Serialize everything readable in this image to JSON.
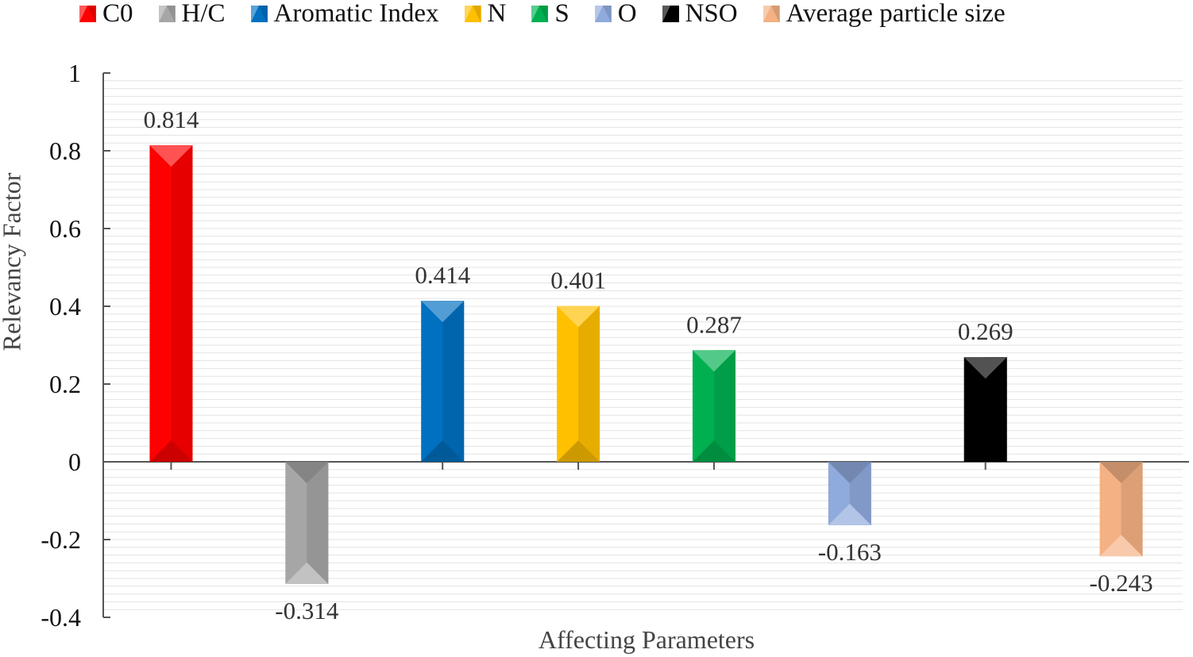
{
  "chart_data": {
    "type": "bar",
    "title": "",
    "xlabel": "Affecting Parameters",
    "ylabel": "Relevancy Factor",
    "ylim": [
      -0.4,
      1
    ],
    "yticks": [
      -0.4,
      -0.2,
      0,
      0.2,
      0.4,
      0.6,
      0.8,
      1
    ],
    "ytick_labels": [
      "-0.4",
      "-0.2",
      "0",
      "0.2",
      "0.4",
      "0.6",
      "0.8",
      "1"
    ],
    "grid": true,
    "legend_position": "top",
    "series": [
      {
        "name": "C0",
        "value": 0.814,
        "label": "0.814",
        "color": "#ff0000"
      },
      {
        "name": "H/C",
        "value": -0.314,
        "label": "-0.314",
        "color": "#a6a6a6"
      },
      {
        "name": "Aromatic Index",
        "value": 0.414,
        "label": "0.414",
        "color": "#0070c0"
      },
      {
        "name": "N",
        "value": 0.401,
        "label": "0.401",
        "color": "#ffc000"
      },
      {
        "name": "S",
        "value": 0.287,
        "label": "0.287",
        "color": "#00b050"
      },
      {
        "name": "O",
        "value": -0.163,
        "label": "-0.163",
        "color": "#8faadc"
      },
      {
        "name": "NSO",
        "value": 0.269,
        "label": "0.269",
        "color": "#000000"
      },
      {
        "name": "Average particle size",
        "value": -0.243,
        "label": "-0.243",
        "color": "#f4b183"
      }
    ]
  }
}
